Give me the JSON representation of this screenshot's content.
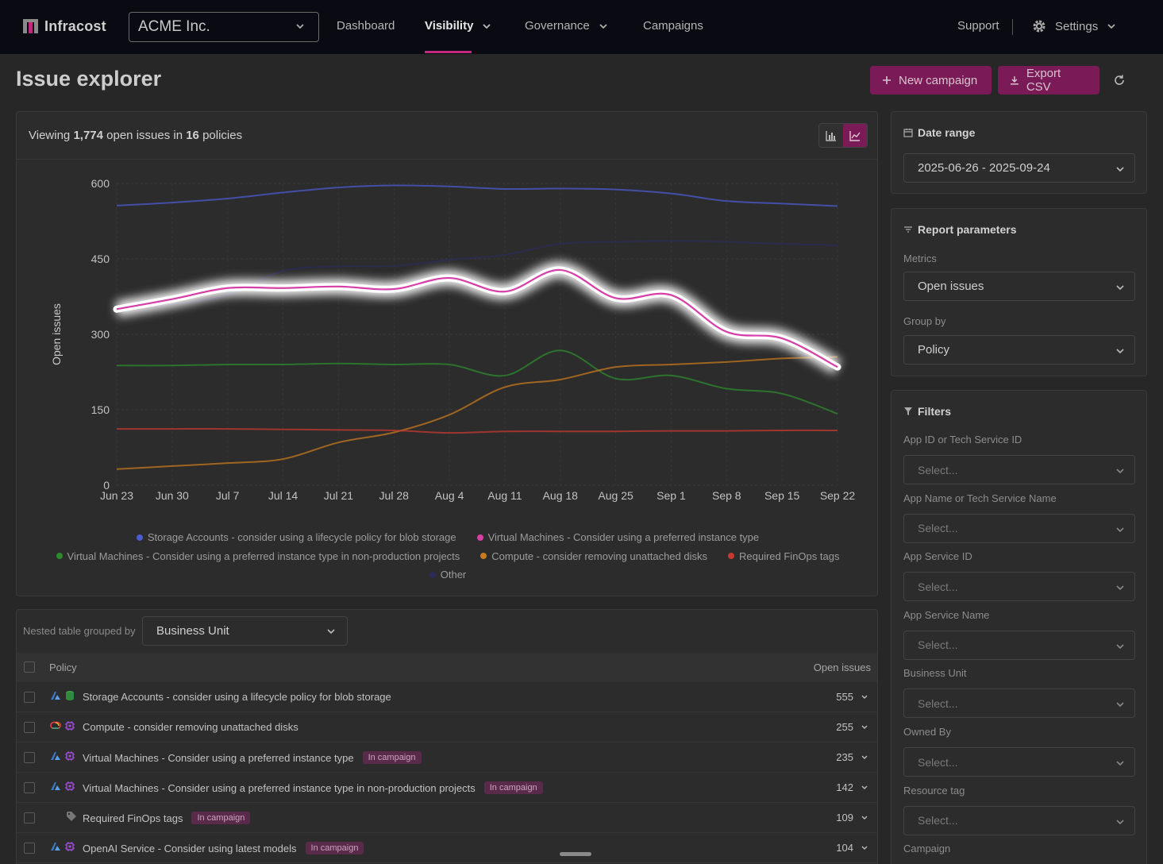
{
  "nav": {
    "brand": "Infracost",
    "org": "ACME Inc.",
    "items": [
      {
        "label": "Dashboard"
      },
      {
        "label": "Visibility"
      },
      {
        "label": "Governance"
      },
      {
        "label": "Campaigns"
      }
    ],
    "support": "Support",
    "settings": "Settings",
    "accent": "#c0297e"
  },
  "header": {
    "title": "Issue explorer",
    "new_campaign": "New campaign",
    "export_csv": "Export CSV"
  },
  "chart_panel": {
    "summary_prefix": "Viewing ",
    "issue_count": "1,774",
    "summary_mid": " open issues in ",
    "policy_count": "16",
    "summary_suffix": " policies"
  },
  "chart_data": {
    "type": "line",
    "ylabel": "Open issues",
    "xlabel": "",
    "ylim": [
      0,
      600
    ],
    "yticks": [
      0,
      150,
      300,
      450,
      600
    ],
    "x": [
      "Jun 23",
      "Jun 30",
      "Jul 7",
      "Jul 14",
      "Jul 21",
      "Jul 28",
      "Aug 4",
      "Aug 11",
      "Aug 18",
      "Aug 25",
      "Sep 1",
      "Sep 8",
      "Sep 15",
      "Sep 22"
    ],
    "grid": true,
    "legend_position": "bottom",
    "highlighted_series": "Virtual Machines - Consider using a preferred instance type",
    "series": [
      {
        "name": "Storage Accounts - consider using a lifecycle policy for blob storage",
        "color": "#4b5bd0",
        "values": [
          556,
          562,
          570,
          582,
          592,
          596,
          594,
          589,
          590,
          588,
          580,
          565,
          560,
          555
        ]
      },
      {
        "name": "Virtual Machines - Consider using a preferred instance type",
        "color": "#d63fa8",
        "values": [
          350,
          370,
          392,
          392,
          395,
          390,
          412,
          385,
          428,
          372,
          378,
          305,
          292,
          235
        ]
      },
      {
        "name": "Virtual Machines - Consider using a preferred instance type in non-production projects",
        "color": "#2e8a2e",
        "values": [
          238,
          238,
          240,
          240,
          242,
          240,
          240,
          218,
          268,
          212,
          218,
          192,
          182,
          142
        ]
      },
      {
        "name": "Compute - consider removing unattached disks",
        "color": "#c77a1e",
        "values": [
          32,
          38,
          44,
          52,
          85,
          105,
          140,
          195,
          210,
          235,
          240,
          245,
          252,
          255
        ]
      },
      {
        "name": "Required FinOps tags",
        "color": "#c43a30",
        "values": [
          112,
          112,
          112,
          111,
          110,
          109,
          104,
          107,
          107,
          107,
          108,
          108,
          109,
          109
        ]
      },
      {
        "name": "Other",
        "color": "#2b2b5a",
        "values": [
          348,
          360,
          378,
          426,
          435,
          436,
          448,
          458,
          480,
          484,
          486,
          484,
          480,
          477
        ]
      }
    ]
  },
  "legend_rows": [
    [
      0,
      1
    ],
    [
      2,
      3,
      4
    ],
    [
      5
    ]
  ],
  "table": {
    "group_label": "Nested table grouped by",
    "group_value": "Business Unit",
    "col_policy": "Policy",
    "col_open": "Open issues",
    "rows": [
      {
        "name": "Storage Accounts - consider using a lifecycle policy for blob storage",
        "count": "555",
        "tag": "",
        "provider": "azure",
        "service": "storage"
      },
      {
        "name": "Compute - consider removing unattached disks",
        "count": "255",
        "tag": "",
        "provider": "gcp",
        "service": "compute"
      },
      {
        "name": "Virtual Machines - Consider using a preferred instance type",
        "count": "235",
        "tag": "In campaign",
        "provider": "azure",
        "service": "compute"
      },
      {
        "name": "Virtual Machines - Consider using a preferred instance type in non-production projects",
        "count": "142",
        "tag": "In campaign",
        "provider": "azure",
        "service": "compute"
      },
      {
        "name": "Required FinOps tags",
        "count": "109",
        "tag": "In campaign",
        "provider": "",
        "service": "tag"
      },
      {
        "name": "OpenAI Service - Consider using latest models",
        "count": "104",
        "tag": "In campaign",
        "provider": "azure",
        "service": "compute"
      }
    ]
  },
  "sidebar": {
    "date_range_title": "Date range",
    "date_range_value": "2025-06-26 - 2025-09-24",
    "report_title": "Report parameters",
    "metrics_label": "Metrics",
    "metrics_value": "Open issues",
    "groupby_label": "Group by",
    "groupby_value": "Policy",
    "filters_title": "Filters",
    "filter_placeholder": "Select...",
    "filters": [
      "App ID or Tech Service ID",
      "App Name or Tech Service Name",
      "App Service ID",
      "App Service Name",
      "Business Unit",
      "Owned By",
      "Resource tag",
      "Campaign"
    ]
  }
}
